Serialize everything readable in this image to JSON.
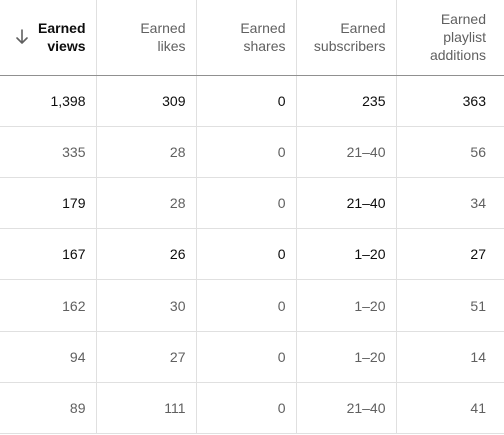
{
  "table": {
    "columns": [
      {
        "label": "Earned views",
        "lines": [
          "Earned",
          "views"
        ],
        "sorted": true,
        "sort_icon": "arrow-down-icon"
      },
      {
        "label": "Earned likes",
        "lines": [
          "Earned",
          "likes"
        ],
        "sorted": false
      },
      {
        "label": "Earned shares",
        "lines": [
          "Earned",
          "shares"
        ],
        "sorted": false
      },
      {
        "label": "Earned subscribers",
        "lines": [
          "Earned",
          "subscribers"
        ],
        "sorted": false
      },
      {
        "label": "Earned playlist additions",
        "lines": [
          "Earned",
          "playlist",
          "additions"
        ],
        "sorted": false
      }
    ],
    "rows": [
      [
        "1,398",
        "309",
        "0",
        "235",
        "363"
      ],
      [
        "335",
        "28",
        "0",
        "21–40",
        "56"
      ],
      [
        "179",
        "28",
        "0",
        "21–40",
        "34"
      ],
      [
        "167",
        "26",
        "0",
        "1–20",
        "27"
      ],
      [
        "162",
        "30",
        "0",
        "1–20",
        "51"
      ],
      [
        "94",
        "27",
        "0",
        "1–20",
        "14"
      ],
      [
        "89",
        "111",
        "0",
        "21–40",
        "41"
      ]
    ]
  },
  "colors": {
    "header_text": "#606060",
    "header_sorted_text": "#0d0d0d",
    "cell_text": "#606060",
    "cell_text_emphasis": "#0d0d0d",
    "divider": "#e0e0e0",
    "header_divider": "#909090"
  }
}
